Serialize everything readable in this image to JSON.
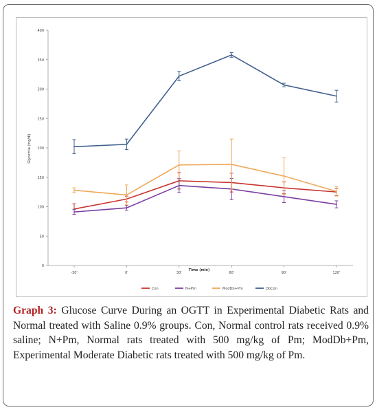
{
  "chart_data": {
    "type": "line",
    "title": "",
    "xlabel": "Time (min)",
    "ylabel": "Glycemia (mg/dl)",
    "ylim": [
      0,
      400
    ],
    "yticks": [
      0,
      50,
      100,
      150,
      200,
      250,
      300,
      350,
      400
    ],
    "categories": [
      "-30'",
      "0'",
      "30'",
      "60'",
      "90'",
      "120'"
    ],
    "grid": false,
    "legend_position": "bottom",
    "series": [
      {
        "name": "Con",
        "color": "#c8342f",
        "values": [
          96,
          113,
          144,
          141,
          132,
          125
        ],
        "errors": [
          9,
          5,
          14,
          16,
          10,
          6
        ]
      },
      {
        "name": "N+Pm",
        "color": "#7b3fa0",
        "values": [
          91,
          98,
          136,
          130,
          117,
          104
        ],
        "errors": [
          4,
          4,
          12,
          18,
          10,
          6
        ]
      },
      {
        "name": "ModDb+Pm",
        "color": "#f0a85a",
        "values": [
          128,
          120,
          171,
          172,
          152,
          126
        ],
        "errors": [
          4,
          17,
          24,
          43,
          31,
          8
        ]
      },
      {
        "name": "DbCon",
        "color": "#3f5f8e",
        "values": [
          202,
          206,
          322,
          358,
          307,
          288
        ],
        "errors": [
          12,
          9,
          8,
          4,
          3,
          10
        ]
      }
    ]
  },
  "caption": {
    "label": "Graph 3:",
    "text": " Glucose Curve During an OGTT in Experimental Diabetic Rats and Normal treated with Saline 0.9% groups. Con, Normal control rats received 0.9% saline; N+Pm, Normal rats treated with 500 mg/kg of Pm; ModDb+Pm, Experimental Moderate Diabetic rats treated with 500 mg/kg of Pm."
  }
}
